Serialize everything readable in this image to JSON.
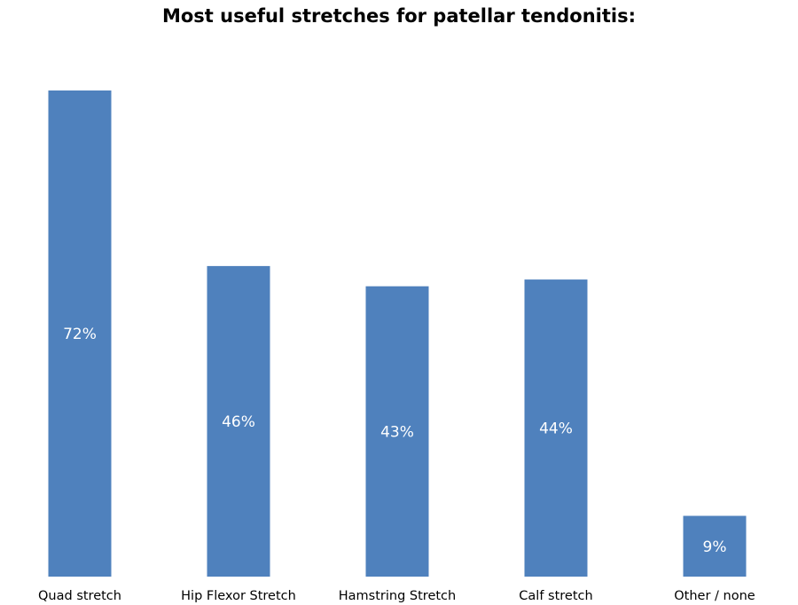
{
  "chart_data": {
    "type": "bar",
    "title": "Most useful stretches for patellar tendonitis:",
    "categories": [
      "Quad stretch",
      "Hip Flexor Stretch",
      "Hamstring Stretch",
      "Calf stretch",
      "Other / none"
    ],
    "values": [
      72,
      46,
      43,
      44,
      9
    ],
    "value_labels": [
      "72%",
      "46%",
      "43%",
      "44%",
      "9%"
    ],
    "xlabel": "",
    "ylabel": "",
    "ylim": [
      0,
      72
    ],
    "grid": false,
    "legend": "none"
  },
  "colors": {
    "bar": "#4f81bd",
    "bar_label": "#ffffff",
    "category_label": "#000000"
  }
}
